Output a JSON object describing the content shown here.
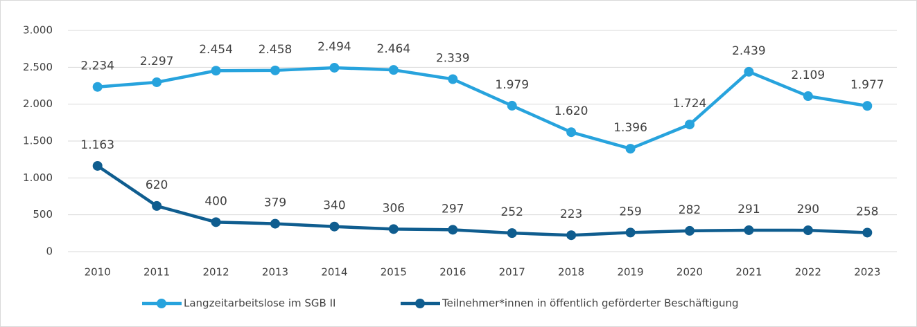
{
  "chart_data": {
    "type": "line",
    "categories": [
      "2010",
      "2011",
      "2012",
      "2013",
      "2014",
      "2015",
      "2016",
      "2017",
      "2018",
      "2019",
      "2020",
      "2021",
      "2022",
      "2023"
    ],
    "series": [
      {
        "name": "Langzeitarbeitslose im SGB II",
        "color": "#27a3dd",
        "values": [
          2234,
          2297,
          2454,
          2458,
          2494,
          2464,
          2339,
          1979,
          1620,
          1396,
          1724,
          2439,
          2109,
          1977
        ],
        "value_labels": [
          "2.234",
          "2.297",
          "2.454",
          "2.458",
          "2.494",
          "2.464",
          "2.339",
          "1.979",
          "1.620",
          "1.396",
          "1.724",
          "2.439",
          "2.109",
          "1.977"
        ]
      },
      {
        "name": "Teilnehmer*innen in öffentlich geförderter Beschäftigung",
        "color": "#0f5d8f",
        "values": [
          1163,
          620,
          400,
          379,
          340,
          306,
          297,
          252,
          223,
          259,
          282,
          291,
          290,
          258
        ],
        "value_labels": [
          "1.163",
          "620",
          "400",
          "379",
          "340",
          "306",
          "297",
          "252",
          "223",
          "259",
          "282",
          "291",
          "290",
          "258"
        ]
      }
    ],
    "ylim": [
      0,
      3000
    ],
    "yticks": [
      0,
      500,
      {
        "value": 1000,
        "label": "1.000"
      },
      {
        "value": 1500,
        "label": "1.500"
      },
      {
        "value": 2000,
        "label": "2.000"
      },
      {
        "value": 2500,
        "label": "2.500"
      },
      {
        "value": 3000,
        "label": "3.000"
      }
    ],
    "grid": true,
    "legend": "bottom"
  }
}
